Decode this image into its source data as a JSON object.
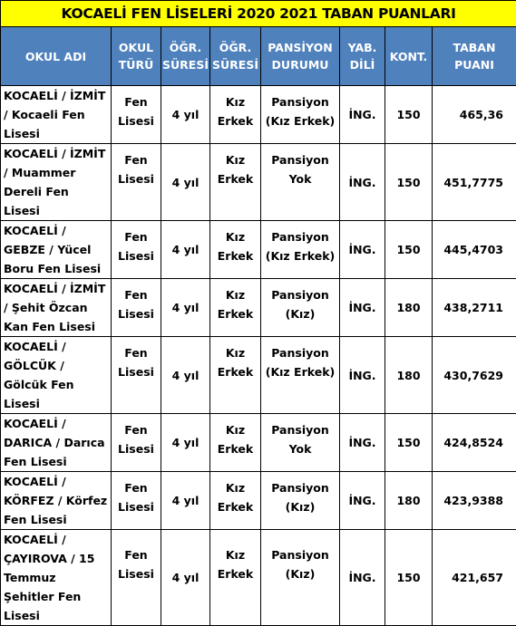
{
  "title": "KOCAELİ FEN LİSELERİ 2020 2021 TABAN PUANLARI",
  "headers": [
    "OKUL ADI",
    "OKUL TÜRÜ",
    "ÖĞR. SÜRESİ",
    "ÖĞR. SÜRESİ",
    "PANSİYON DURUMU",
    "YAB. DİLİ",
    "KONT.",
    "TABAN PUANI"
  ],
  "rows": [
    {
      "school": "KOCAELİ / İZMİT / Kocaeli Fen Lisesi",
      "type": "Fen Lisesi",
      "duration": "4 yıl",
      "gender": "Kız Erkek",
      "dorm": "Pansiyon (Kız Erkek)",
      "language": "İNG.",
      "quota": "150",
      "score": "465,36"
    },
    {
      "school": "KOCAELİ / İZMİT / Muammer Dereli Fen Lisesi",
      "type": "Fen Lisesi",
      "duration": "4 yıl",
      "gender": "Kız Erkek",
      "dorm": "Pansiyon Yok",
      "language": "İNG.",
      "quota": "150",
      "score": "451,7775"
    },
    {
      "school": "KOCAELİ / GEBZE / Yücel Boru Fen Lisesi",
      "type": "Fen Lisesi",
      "duration": "4 yıl",
      "gender": "Kız Erkek",
      "dorm": "Pansiyon (Kız Erkek)",
      "language": "İNG.",
      "quota": "150",
      "score": "445,4703"
    },
    {
      "school": "KOCAELİ / İZMİT / Şehit Özcan Kan Fen Lisesi",
      "type": "Fen Lisesi",
      "duration": "4 yıl",
      "gender": "Kız Erkek",
      "dorm": "Pansiyon (Kız)",
      "language": "İNG.",
      "quota": "180",
      "score": "438,2711"
    },
    {
      "school": "KOCAELİ / GÖLCÜK / Gölcük Fen Lisesi",
      "type": "Fen Lisesi",
      "duration": "4 yıl",
      "gender": "Kız Erkek",
      "dorm": "Pansiyon (Kız Erkek)",
      "language": "İNG.",
      "quota": "180",
      "score": "430,7629"
    },
    {
      "school": "KOCAELİ / DARICA / Darıca Fen Lisesi",
      "type": "Fen Lisesi",
      "duration": "4 yıl",
      "gender": "Kız Erkek",
      "dorm": "Pansiyon Yok",
      "language": "İNG.",
      "quota": "150",
      "score": "424,8524"
    },
    {
      "school": "KOCAELİ / KÖRFEZ / Körfez Fen Lisesi",
      "type": "Fen Lisesi",
      "duration": "4 yıl",
      "gender": "Kız Erkek",
      "dorm": "Pansiyon (Kız)",
      "language": "İNG.",
      "quota": "180",
      "score": "423,9388"
    },
    {
      "school": "KOCAELİ / ÇAYIROVA / 15 Temmuz Şehitler Fen Lisesi",
      "type": "Fen Lisesi",
      "duration": "4 yıl",
      "gender": "Kız Erkek",
      "dorm": "Pansiyon (Kız)",
      "language": "İNG.",
      "quota": "150",
      "score": "421,657"
    }
  ],
  "colors": {
    "title_bg": "#ffff00",
    "header_bg": "#4f81bd",
    "header_text": "#ffffff",
    "border": "#000000"
  }
}
